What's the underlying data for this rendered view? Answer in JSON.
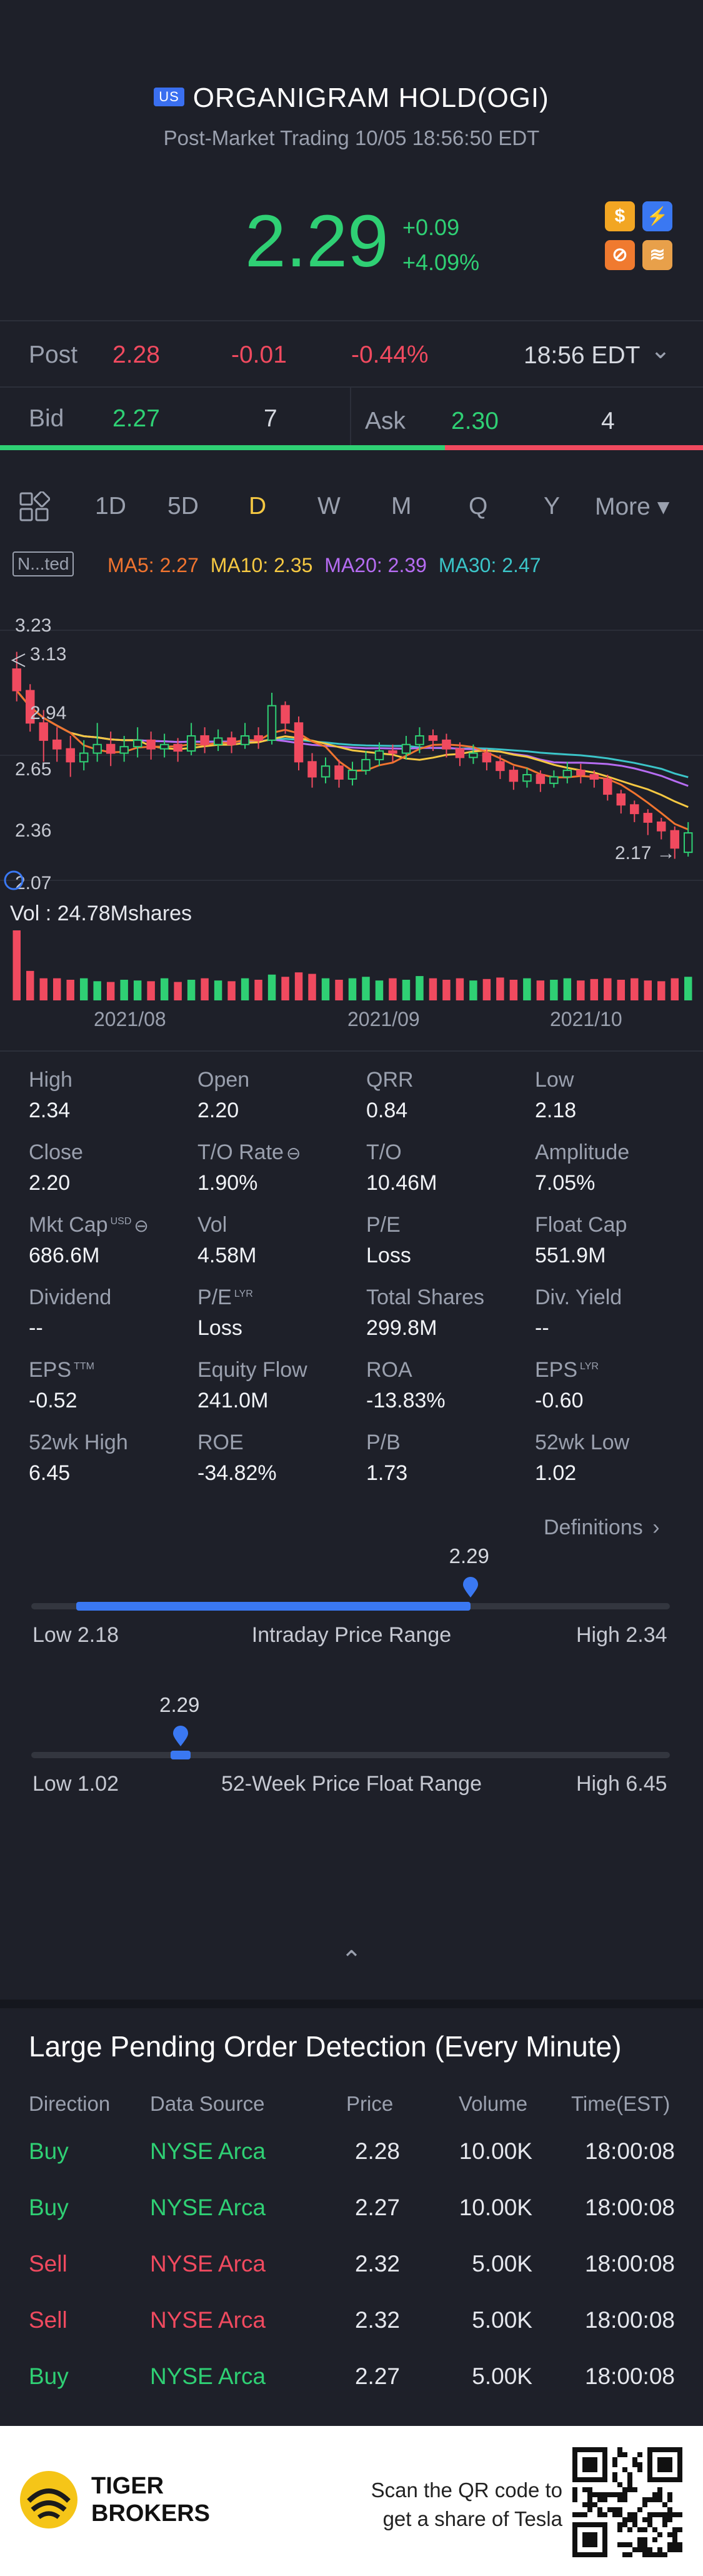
{
  "header": {
    "market_badge": "US",
    "title": "ORGANIGRAM HOLD(OGI)",
    "subtitle": "Post-Market Trading 10/05 18:56:50 EDT",
    "price": "2.29",
    "change": "+0.09",
    "change_pct": "+4.09%",
    "icons": [
      "dollar-icon",
      "lightning-icon",
      "no-short-icon",
      "stack-icon"
    ],
    "icon_glyphs": [
      "$",
      "⚡",
      "⊘",
      "≋"
    ]
  },
  "post_row": {
    "label": "Post",
    "price": "2.28",
    "change": "-0.01",
    "change_pct": "-0.44%",
    "time": "18:56 EDT",
    "chevron": "⌄"
  },
  "bid_ask": {
    "bid_label": "Bid",
    "bid_price": "2.27",
    "bid_size": "7",
    "ask_label": "Ask",
    "ask_price": "2.30",
    "ask_size": "4",
    "bid_share": 0.633
  },
  "tabs": [
    "1D",
    "5D",
    "D",
    "W",
    "M",
    "Q",
    "Y"
  ],
  "tabs_selected": "D",
  "tabs_more": "More ▾",
  "ma": {
    "badge": "N...ted",
    "ma5": "MA5: 2.27",
    "ma10": "MA10: 2.35",
    "ma20": "MA20: 2.39",
    "ma30": "MA30: 2.47",
    "colors": {
      "ma5": "#f0742f",
      "ma10": "#f5c842",
      "ma20": "#b66cf2",
      "ma30": "#3bc4c8"
    }
  },
  "chart_data": {
    "type": "candlestick",
    "price_labels": [
      "3.23",
      "3.13",
      "2.94",
      "2.65",
      "2.36",
      "2.07"
    ],
    "last_label": "2.17",
    "volume_label": "Vol  : 24.78Mshares",
    "x_ticks": [
      "2021/08",
      "2021/09",
      "2021/10"
    ],
    "ylim": [
      2.07,
      3.23
    ],
    "candles": [
      [
        3.05,
        2.95,
        3.13,
        2.9
      ],
      [
        2.95,
        2.8,
        2.98,
        2.76
      ],
      [
        2.8,
        2.72,
        2.86,
        2.62
      ],
      [
        2.72,
        2.68,
        2.78,
        2.62
      ],
      [
        2.68,
        2.62,
        2.74,
        2.55
      ],
      [
        2.62,
        2.66,
        2.72,
        2.58
      ],
      [
        2.66,
        2.7,
        2.8,
        2.62
      ],
      [
        2.7,
        2.66,
        2.76,
        2.6
      ],
      [
        2.66,
        2.69,
        2.74,
        2.62
      ],
      [
        2.69,
        2.72,
        2.78,
        2.64
      ],
      [
        2.72,
        2.68,
        2.76,
        2.63
      ],
      [
        2.68,
        2.7,
        2.75,
        2.64
      ],
      [
        2.7,
        2.67,
        2.73,
        2.62
      ],
      [
        2.67,
        2.74,
        2.8,
        2.65
      ],
      [
        2.74,
        2.7,
        2.78,
        2.66
      ],
      [
        2.7,
        2.73,
        2.77,
        2.67
      ],
      [
        2.73,
        2.7,
        2.76,
        2.66
      ],
      [
        2.7,
        2.74,
        2.8,
        2.68
      ],
      [
        2.74,
        2.72,
        2.78,
        2.68
      ],
      [
        2.72,
        2.88,
        2.94,
        2.7
      ],
      [
        2.88,
        2.8,
        2.9,
        2.75
      ],
      [
        2.8,
        2.62,
        2.83,
        2.58
      ],
      [
        2.62,
        2.55,
        2.66,
        2.5
      ],
      [
        2.55,
        2.6,
        2.64,
        2.52
      ],
      [
        2.6,
        2.54,
        2.63,
        2.5
      ],
      [
        2.54,
        2.58,
        2.62,
        2.51
      ],
      [
        2.58,
        2.63,
        2.67,
        2.56
      ],
      [
        2.63,
        2.67,
        2.71,
        2.6
      ],
      [
        2.67,
        2.66,
        2.7,
        2.62
      ],
      [
        2.66,
        2.7,
        2.74,
        2.63
      ],
      [
        2.7,
        2.74,
        2.78,
        2.66
      ],
      [
        2.74,
        2.72,
        2.77,
        2.67
      ],
      [
        2.72,
        2.68,
        2.75,
        2.64
      ],
      [
        2.68,
        2.64,
        2.71,
        2.6
      ],
      [
        2.64,
        2.66,
        2.7,
        2.61
      ],
      [
        2.66,
        2.62,
        2.68,
        2.58
      ],
      [
        2.62,
        2.58,
        2.65,
        2.54
      ],
      [
        2.58,
        2.53,
        2.6,
        2.49
      ],
      [
        2.53,
        2.56,
        2.59,
        2.5
      ],
      [
        2.56,
        2.52,
        2.58,
        2.48
      ],
      [
        2.52,
        2.55,
        2.58,
        2.5
      ],
      [
        2.55,
        2.58,
        2.62,
        2.52
      ],
      [
        2.58,
        2.56,
        2.61,
        2.52
      ],
      [
        2.56,
        2.54,
        2.58,
        2.5
      ],
      [
        2.54,
        2.47,
        2.56,
        2.44
      ],
      [
        2.47,
        2.42,
        2.49,
        2.38
      ],
      [
        2.42,
        2.38,
        2.44,
        2.34
      ],
      [
        2.38,
        2.34,
        2.4,
        2.28
      ],
      [
        2.34,
        2.3,
        2.36,
        2.26
      ],
      [
        2.3,
        2.22,
        2.32,
        2.17
      ],
      [
        2.2,
        2.29,
        2.34,
        2.18
      ]
    ],
    "volumes": [
      0.95,
      0.4,
      0.3,
      0.3,
      0.28,
      0.3,
      0.26,
      0.25,
      0.28,
      0.27,
      0.26,
      0.3,
      0.25,
      0.28,
      0.3,
      0.27,
      0.26,
      0.3,
      0.28,
      0.35,
      0.32,
      0.38,
      0.36,
      0.3,
      0.28,
      0.3,
      0.32,
      0.27,
      0.3,
      0.28,
      0.33,
      0.3,
      0.28,
      0.3,
      0.27,
      0.29,
      0.31,
      0.28,
      0.3,
      0.27,
      0.28,
      0.3,
      0.27,
      0.29,
      0.3,
      0.28,
      0.3,
      0.27,
      0.26,
      0.3,
      0.32
    ]
  },
  "stats": [
    {
      "label": "High",
      "value": "2.34"
    },
    {
      "label": "Open",
      "value": "2.20"
    },
    {
      "label": "QRR",
      "value": "0.84"
    },
    {
      "label": "Low",
      "value": "2.18"
    },
    {
      "label": "Close",
      "value": "2.20"
    },
    {
      "label": "T/O Rate",
      "value": "1.90%"
    },
    {
      "label": "T/O",
      "value": "10.46M"
    },
    {
      "label": "Amplitude",
      "value": "7.05%"
    },
    {
      "label": "Mkt Cap",
      "value": "686.6M",
      "sup": "USD"
    },
    {
      "label": "Vol",
      "value": "4.58M"
    },
    {
      "label": "P/E",
      "value": "Loss"
    },
    {
      "label": "Float Cap",
      "value": "551.9M"
    },
    {
      "label": "Dividend",
      "value": "--"
    },
    {
      "label": "P/E",
      "value": "Loss",
      "sup": "LYR"
    },
    {
      "label": "Total Shares",
      "value": "299.8M"
    },
    {
      "label": "Div. Yield",
      "value": "--"
    },
    {
      "label": "EPS",
      "value": "-0.52",
      "sup": "TTM"
    },
    {
      "label": "Equity Flow",
      "value": "241.0M"
    },
    {
      "label": "ROA",
      "value": "-13.83%"
    },
    {
      "label": "EPS",
      "value": "-0.60",
      "sup": "LYR"
    },
    {
      "label": "52wk High",
      "value": "6.45"
    },
    {
      "label": "ROE",
      "value": "-34.82%"
    },
    {
      "label": "P/B",
      "value": "1.73"
    },
    {
      "label": "52wk Low",
      "value": "1.02"
    }
  ],
  "definitions_link": "Definitions",
  "intraday_range": {
    "current": "2.29",
    "low": "Low 2.18",
    "title": "Intraday Price Range",
    "high": "High 2.34",
    "fraction": 0.6875
  },
  "week52_range": {
    "current": "2.29",
    "low": "Low 1.02",
    "title": "52-Week Price Float Range",
    "high": "High 6.45",
    "fraction": 0.234
  },
  "collapse_glyph": "⌃",
  "orders": {
    "title": "Large Pending Order Detection (Every Minute)",
    "headers": [
      "Direction",
      "Data Source",
      "Price",
      "Volume",
      "Time(EST)"
    ],
    "rows": [
      {
        "direction": "Buy",
        "source": "NYSE Arca",
        "price": "2.28",
        "volume": "10.00K",
        "time": "18:00:08"
      },
      {
        "direction": "Buy",
        "source": "NYSE Arca",
        "price": "2.27",
        "volume": "10.00K",
        "time": "18:00:08"
      },
      {
        "direction": "Sell",
        "source": "NYSE Arca",
        "price": "2.32",
        "volume": "5.00K",
        "time": "18:00:08"
      },
      {
        "direction": "Sell",
        "source": "NYSE Arca",
        "price": "2.32",
        "volume": "5.00K",
        "time": "18:00:08"
      },
      {
        "direction": "Buy",
        "source": "NYSE Arca",
        "price": "2.27",
        "volume": "5.00K",
        "time": "18:00:08"
      }
    ]
  },
  "footer": {
    "brand_line1": "TIGER",
    "brand_line2": "BROKERS",
    "cta_line1": "Scan the QR code to",
    "cta_line2": "get a share of Tesla"
  }
}
